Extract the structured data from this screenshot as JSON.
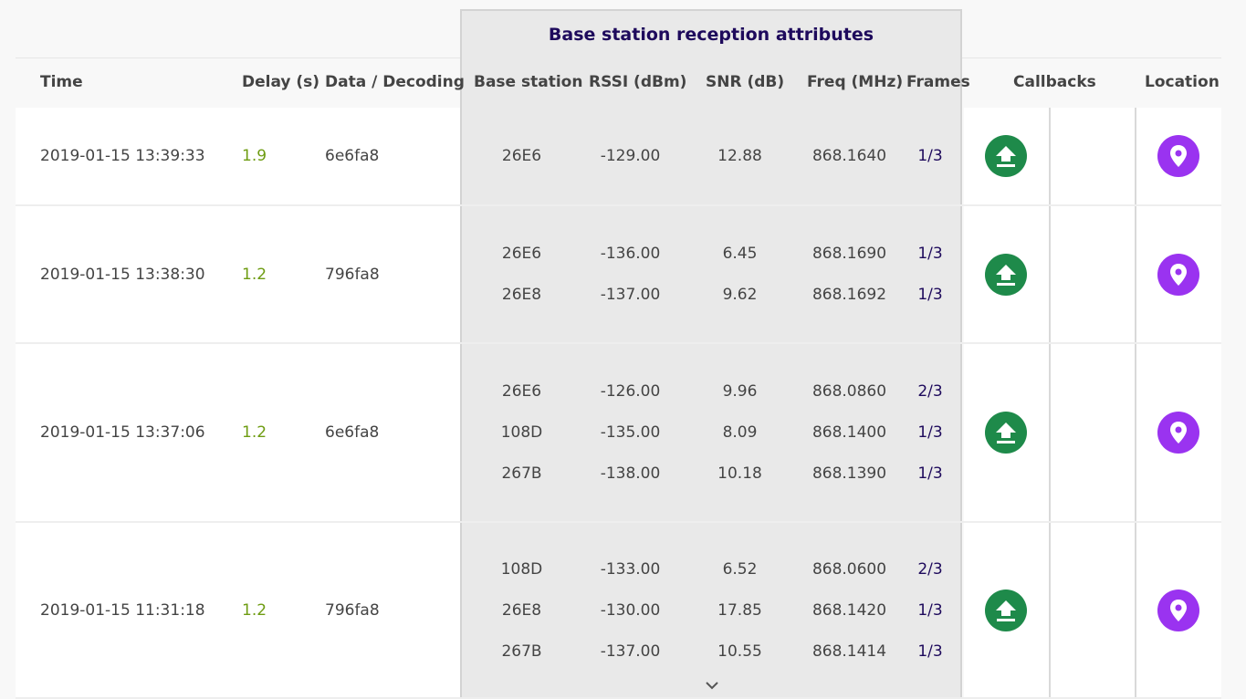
{
  "table": {
    "group_header": "Base station reception attributes",
    "headers": {
      "time": "Time",
      "delay": "Delay (s)",
      "data": "Data / Decoding",
      "base_station": "Base station",
      "rssi": "RSSI (dBm)",
      "snr": "SNR (dB)",
      "freq": "Freq (MHz)",
      "frames": "Frames",
      "callbacks": "Callbacks",
      "location": "Location"
    },
    "rows": [
      {
        "time": "2019-01-15 13:39:33",
        "delay": "1.9",
        "data": "6e6fa8",
        "stations": [
          {
            "id": "26E6",
            "rssi": "-129.00",
            "snr": "12.88",
            "freq": "868.1640",
            "frames": "1/3"
          }
        ]
      },
      {
        "time": "2019-01-15 13:38:30",
        "delay": "1.2",
        "data": "796fa8",
        "stations": [
          {
            "id": "26E6",
            "rssi": "-136.00",
            "snr": "6.45",
            "freq": "868.1690",
            "frames": "1/3"
          },
          {
            "id": "26E8",
            "rssi": "-137.00",
            "snr": "9.62",
            "freq": "868.1692",
            "frames": "1/3"
          }
        ]
      },
      {
        "time": "2019-01-15 13:37:06",
        "delay": "1.2",
        "data": "6e6fa8",
        "stations": [
          {
            "id": "26E6",
            "rssi": "-126.00",
            "snr": "9.96",
            "freq": "868.0860",
            "frames": "2/3"
          },
          {
            "id": "108D",
            "rssi": "-135.00",
            "snr": "8.09",
            "freq": "868.1400",
            "frames": "1/3"
          },
          {
            "id": "267B",
            "rssi": "-138.00",
            "snr": "10.18",
            "freq": "868.1390",
            "frames": "1/3"
          }
        ]
      },
      {
        "time": "2019-01-15 11:31:18",
        "delay": "1.2",
        "data": "796fa8",
        "stations": [
          {
            "id": "108D",
            "rssi": "-133.00",
            "snr": "6.52",
            "freq": "868.0600",
            "frames": "2/3"
          },
          {
            "id": "26E8",
            "rssi": "-130.00",
            "snr": "17.85",
            "freq": "868.1420",
            "frames": "1/3"
          },
          {
            "id": "267B",
            "rssi": "-137.00",
            "snr": "10.55",
            "freq": "868.1414",
            "frames": "1/3"
          }
        ]
      }
    ]
  },
  "icons": {
    "callback": "upload-icon",
    "location": "map-pin-icon",
    "expand": "chevron-down-icon"
  },
  "colors": {
    "delay": "#6e9c12",
    "frames": "#1e0a5c",
    "callback_button": "#1e8a4a",
    "location_button": "#9a33f0",
    "group_header_text": "#1e0a5c"
  }
}
